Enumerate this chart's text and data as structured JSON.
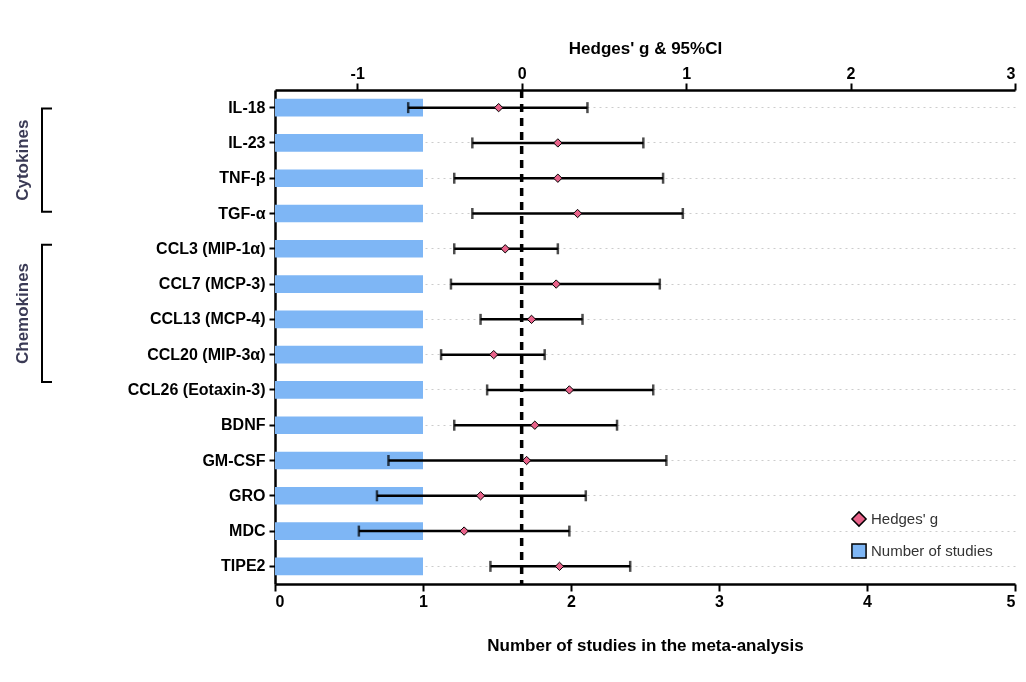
{
  "chart_data": {
    "type": "bar",
    "orientation": "horizontal",
    "categories": [
      "IL-18",
      "IL-23",
      "TNF-β",
      "TGF-α",
      "CCL3 (MIP-1α)",
      "CCL7 (MCP-3)",
      "CCL13 (MCP-4)",
      "CCL20 (MIP-3α)",
      "CCL26 (Eotaxin-3)",
      "BDNF",
      "GM-CSF",
      "GRO",
      "MDC",
      "TIPE2"
    ],
    "series": [
      {
        "name": "Hedges' g",
        "type": "scatter",
        "axis": "x2",
        "color": "#e8638a",
        "values": [
          -0.14,
          0.22,
          0.22,
          0.34,
          -0.1,
          0.21,
          0.06,
          -0.17,
          0.29,
          0.08,
          0.03,
          -0.25,
          -0.35,
          0.23
        ],
        "errors": [
          [
            -0.69,
            0.4
          ],
          [
            -0.3,
            0.74
          ],
          [
            -0.41,
            0.86
          ],
          [
            -0.3,
            0.98
          ],
          [
            -0.41,
            0.22
          ],
          [
            -0.43,
            0.84
          ],
          [
            -0.25,
            0.37
          ],
          [
            -0.49,
            0.14
          ],
          [
            -0.21,
            0.8
          ],
          [
            -0.41,
            0.58
          ],
          [
            -0.81,
            0.88
          ],
          [
            -0.88,
            0.39
          ],
          [
            -0.99,
            0.29
          ],
          [
            -0.19,
            0.66
          ]
        ]
      },
      {
        "name": "Number of studies",
        "type": "bar",
        "color": "#7eb6f5",
        "values": [
          1,
          1,
          1,
          1,
          1,
          1,
          1,
          1,
          1,
          1,
          1,
          1,
          1,
          1
        ]
      }
    ],
    "xlabel": "Number of studies in the meta-analysis",
    "xlim": [
      0,
      5
    ],
    "xticks": [
      0,
      1,
      2,
      3,
      4,
      5
    ],
    "x2label": "Hedges' g  & 95%CI",
    "x2lim": [
      -1.5,
      3
    ],
    "x2ticks": [
      -1,
      0,
      1,
      2,
      3
    ],
    "ref_lines": [
      {
        "axis": "x2",
        "value": 0,
        "line_style": "dashed"
      }
    ],
    "annotations": [
      "Cytokines",
      "Chemokines"
    ],
    "marker": "diamond",
    "grid": "y",
    "legend": "bottom right"
  }
}
